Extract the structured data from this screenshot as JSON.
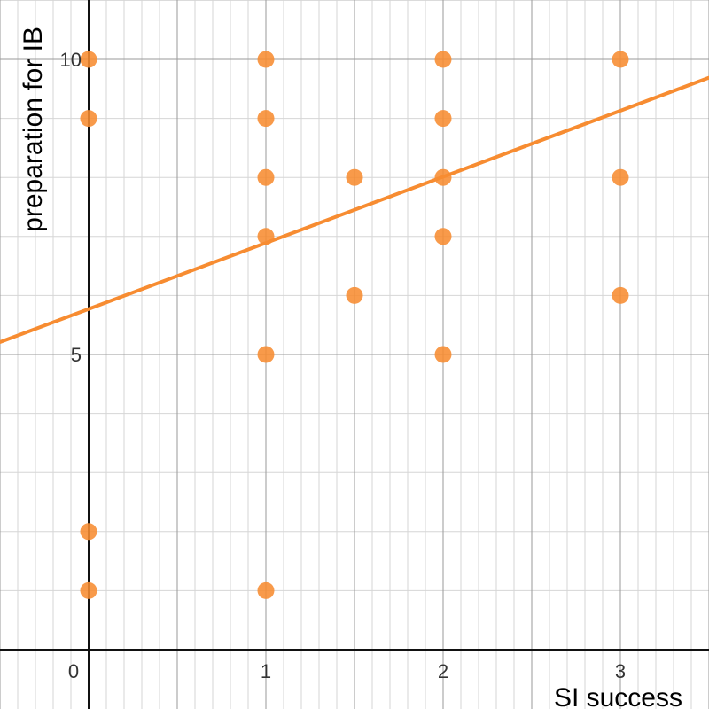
{
  "chart_data": {
    "type": "scatter",
    "title": "",
    "xlabel": "SI success",
    "ylabel": "preparation for IB",
    "xlim": [
      -0.5,
      3.5
    ],
    "ylim": [
      0,
      11
    ],
    "grid": true,
    "x_ticks": [
      0,
      1,
      2,
      3
    ],
    "x_tick_labels": [
      "0",
      "1",
      "2",
      "3"
    ],
    "y_ticks": [
      5,
      10
    ],
    "y_tick_labels": [
      "5",
      "10"
    ],
    "series": [
      {
        "color": "#F78C31",
        "points": [
          {
            "x": 0,
            "y": 10
          },
          {
            "x": 0,
            "y": 9
          },
          {
            "x": 0,
            "y": 2
          },
          {
            "x": 0,
            "y": 1
          },
          {
            "x": 1,
            "y": 10
          },
          {
            "x": 1,
            "y": 9
          },
          {
            "x": 1,
            "y": 8
          },
          {
            "x": 1,
            "y": 7
          },
          {
            "x": 1,
            "y": 5
          },
          {
            "x": 1,
            "y": 1
          },
          {
            "x": 1.5,
            "y": 8
          },
          {
            "x": 1.5,
            "y": 6
          },
          {
            "x": 2,
            "y": 10
          },
          {
            "x": 2,
            "y": 9
          },
          {
            "x": 2,
            "y": 8
          },
          {
            "x": 2,
            "y": 7
          },
          {
            "x": 2,
            "y": 5
          },
          {
            "x": 3,
            "y": 10
          },
          {
            "x": 3,
            "y": 8
          },
          {
            "x": 3,
            "y": 6
          }
        ]
      }
    ],
    "trendline": {
      "type": "linear",
      "slope": 1.12,
      "intercept": 5.77,
      "color": "#F78C31"
    }
  }
}
